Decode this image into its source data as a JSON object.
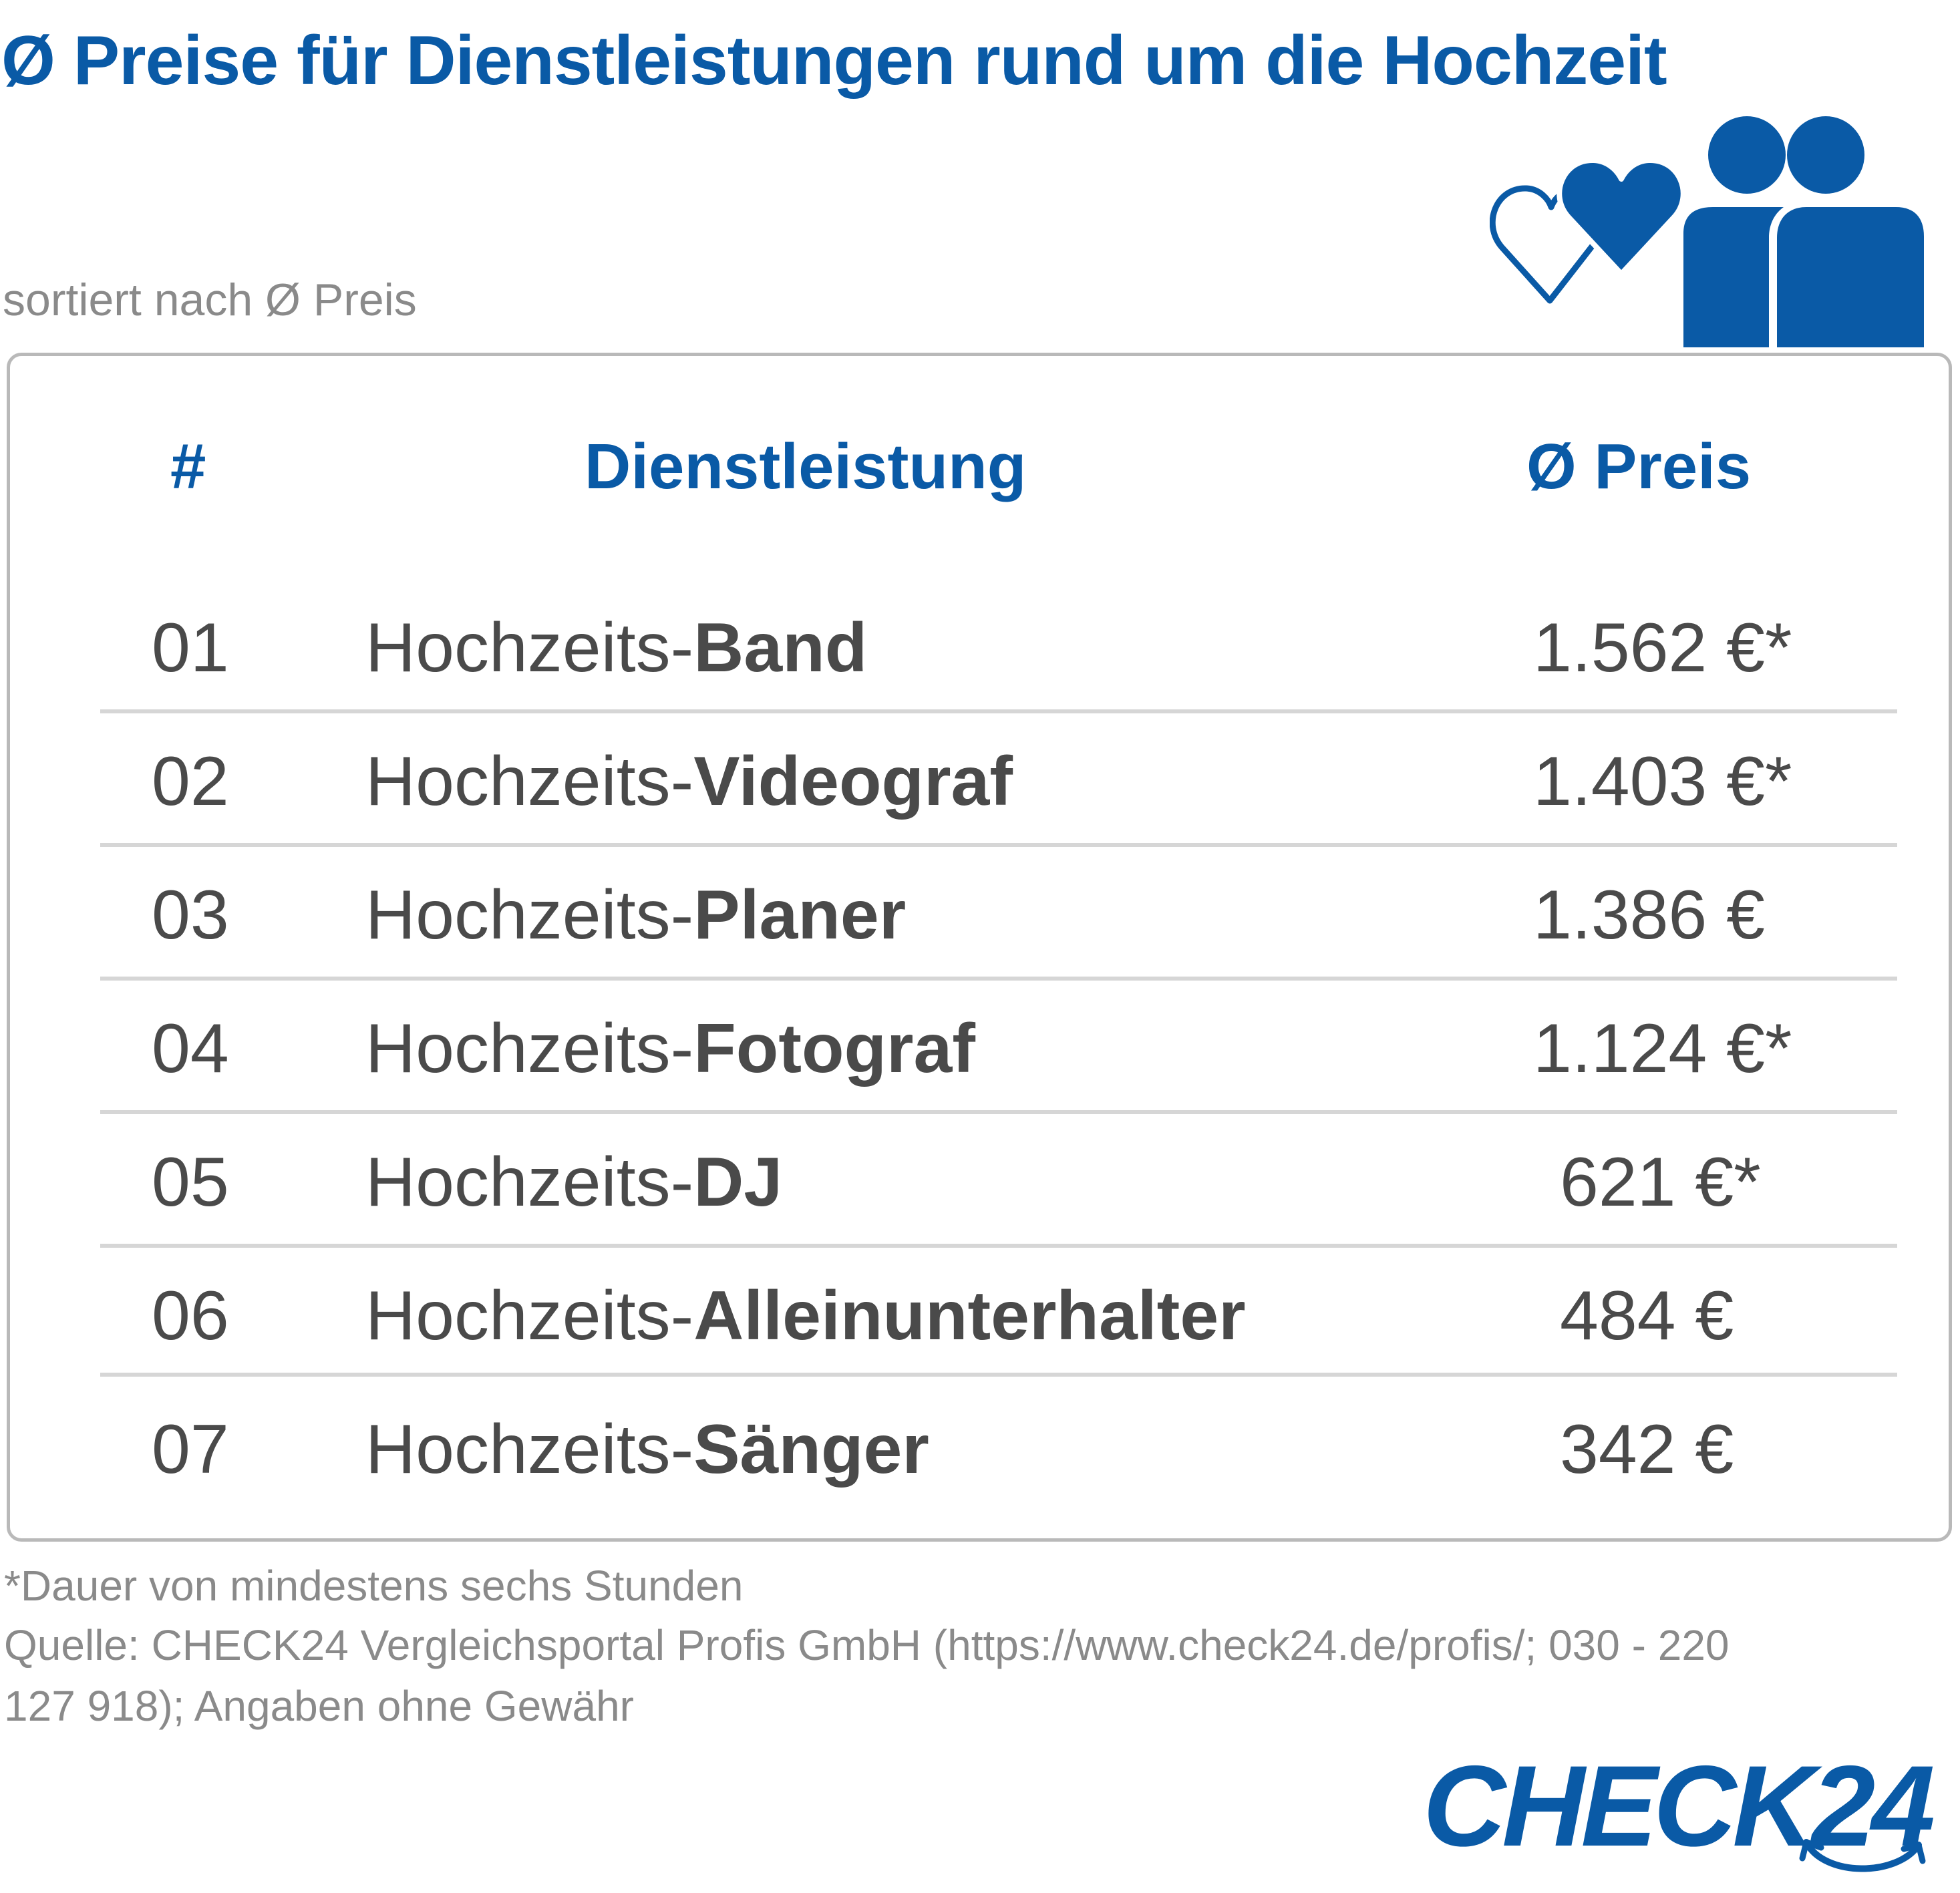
{
  "header": {
    "title": "Ø Preise für Dienstleistungen rund um die Hochzeit",
    "subtitle": "sortiert nach Ø Preis"
  },
  "icons": [
    "hearts-icon",
    "couple-icon"
  ],
  "colors": {
    "brand_blue": "#0a5aa6",
    "text_gray": "#4a4a4a",
    "muted_gray": "#8a8a8a"
  },
  "chart_data": {
    "type": "table",
    "columns": [
      "#",
      "Dienstleistung",
      "Ø Preis"
    ],
    "rows": [
      {
        "rank": "01",
        "prefix": "Hochzeits-",
        "service": "Band",
        "price": "1.562 €*",
        "value": 1562
      },
      {
        "rank": "02",
        "prefix": "Hochzeits-",
        "service": "Videograf",
        "price": "1.403 €*",
        "value": 1403
      },
      {
        "rank": "03",
        "prefix": "Hochzeits-",
        "service": "Planer",
        "price": "1.386 €",
        "value": 1386
      },
      {
        "rank": "04",
        "prefix": "Hochzeits-",
        "service": "Fotograf",
        "price": "1.124 €*",
        "value": 1124
      },
      {
        "rank": "05",
        "prefix": "Hochzeits-",
        "service": "DJ",
        "price": "621 €*",
        "value": 621
      },
      {
        "rank": "06",
        "prefix": "Hochzeits-",
        "service": "Alleinunterhalter",
        "price": "484 €",
        "value": 484
      },
      {
        "rank": "07",
        "prefix": "Hochzeits-",
        "service": "Sänger",
        "price": "342 €",
        "value": 342
      }
    ]
  },
  "footer": {
    "footnote": "*Dauer von mindestens sechs Stunden",
    "source": "Quelle: CHECK24 Vergleichsportal Profis GmbH (https://www.check24.de/profis/;  030 - 220 127 918); Angaben ohne Gewähr"
  },
  "logo": {
    "text": "CHECK24"
  }
}
